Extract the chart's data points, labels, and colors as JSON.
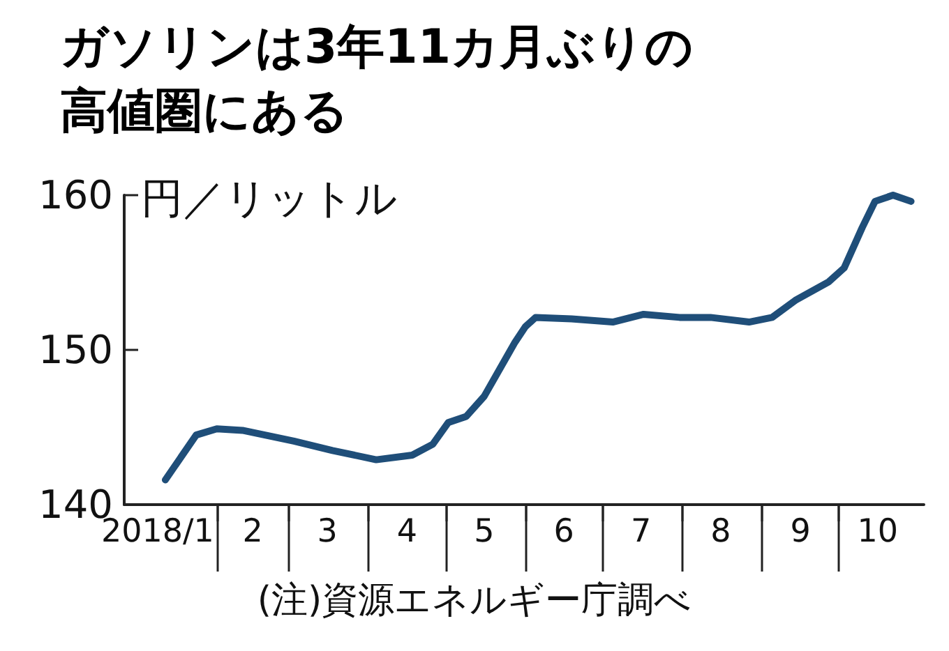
{
  "chart_data": {
    "type": "line",
    "title": "ガソリンは3年11カ月ぶりの高値圏にある",
    "ylabel": "円／リットル",
    "annotations": [
      "(注)資源エネルギー庁調べ"
    ],
    "x": [
      "2018-01-12",
      "2018-01-24",
      "2018-02-01",
      "2018-02-11",
      "2018-03-03",
      "2018-03-18",
      "2018-04-04",
      "2018-04-18",
      "2018-04-26",
      "2018-05-02",
      "2018-05-09",
      "2018-05-16",
      "2018-05-28",
      "2018-06-01",
      "2018-06-05",
      "2018-06-19",
      "2018-07-05",
      "2018-07-17",
      "2018-07-31",
      "2018-08-12",
      "2018-08-27",
      "2018-09-05",
      "2018-09-14",
      "2018-09-27",
      "2018-10-03",
      "2018-10-10",
      "2018-10-15",
      "2018-10-22",
      "2018-10-29"
    ],
    "series": [
      {
        "color": "#1f4e79",
        "values": [
          141.6,
          144.5,
          144.9,
          144.8,
          144.1,
          143.5,
          142.9,
          143.2,
          143.9,
          145.3,
          145.7,
          147.0,
          150.5,
          151.5,
          152.1,
          152.0,
          151.8,
          152.3,
          152.1,
          152.1,
          151.8,
          152.1,
          153.2,
          154.4,
          155.3,
          157.9,
          159.6,
          160.0,
          159.6
        ]
      }
    ],
    "xlim": [
      "2017-12-27",
      "2018-11-03"
    ],
    "xticks": [
      {
        "value": "2018-01-09",
        "label": "2018/1"
      },
      {
        "value": "2018-02-01",
        "label": null
      },
      {
        "value": "2018-02-15",
        "label": "2"
      },
      {
        "value": "2018-03-01",
        "label": null
      },
      {
        "value": "2018-03-16",
        "label": "3"
      },
      {
        "value": "2018-04-01",
        "label": null
      },
      {
        "value": "2018-04-16",
        "label": "4"
      },
      {
        "value": "2018-05-01",
        "label": null
      },
      {
        "value": "2018-05-16",
        "label": "5"
      },
      {
        "value": "2018-06-01",
        "label": null
      },
      {
        "value": "2018-06-16",
        "label": "6"
      },
      {
        "value": "2018-07-01",
        "label": null
      },
      {
        "value": "2018-07-16",
        "label": "7"
      },
      {
        "value": "2018-08-01",
        "label": null
      },
      {
        "value": "2018-08-16",
        "label": "8"
      },
      {
        "value": "2018-09-01",
        "label": null
      },
      {
        "value": "2018-09-16",
        "label": "9"
      },
      {
        "value": "2018-10-01",
        "label": null
      },
      {
        "value": "2018-10-16",
        "label": "10"
      }
    ],
    "ylim": [
      140,
      160
    ],
    "yticks": [
      140,
      150,
      160
    ],
    "grid": false,
    "marker": "none",
    "line_style": "solid"
  }
}
